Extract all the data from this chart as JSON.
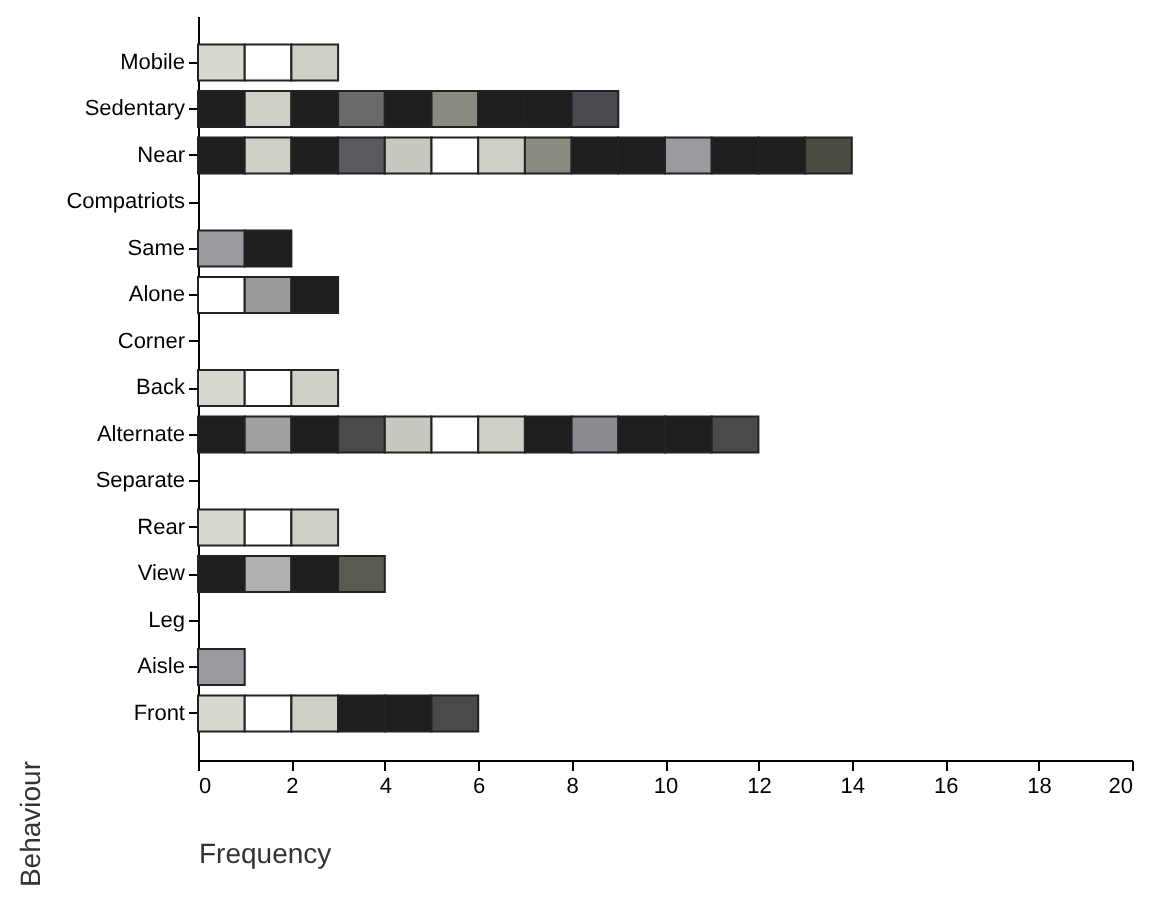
{
  "chart_data": {
    "type": "bar",
    "orientation": "horizontal",
    "stacked": true,
    "xlabel": "Frequency",
    "ylabel": "Behaviour",
    "categories": [
      "Mobile",
      "Sedentary",
      "Near",
      "Compatriots",
      "Same",
      "Alone",
      "Corner",
      "Back",
      "Alternate",
      "Separate",
      "Rear",
      "View",
      "Leg",
      "Aisle",
      "Front"
    ],
    "xlim": [
      0,
      20
    ],
    "xticks": [
      0,
      2,
      4,
      6,
      8,
      10,
      12,
      14,
      16,
      18,
      20
    ],
    "series": [
      {
        "values": [
          1,
          1,
          1,
          null,
          1,
          1,
          null,
          1,
          1,
          null,
          1,
          1,
          null,
          1,
          1
        ],
        "colors": [
          "#d8d8d0",
          "#1e1e1e",
          "#1e1e1e",
          null,
          "#9a9aa0",
          "#ffffff",
          null,
          "#d8d8d0",
          "#1e1e1e",
          null,
          "#d8d8d0",
          "#1e1e1e",
          null,
          "#9a9aa0",
          "#d8d8d0"
        ]
      },
      {
        "values": [
          1,
          1,
          1,
          null,
          1,
          1,
          null,
          1,
          1,
          null,
          1,
          1,
          null,
          null,
          1
        ],
        "colors": [
          "#ffffff",
          "#d0d0c8",
          "#d0d0c8",
          null,
          "#1e1e1e",
          "#9a9a9a",
          null,
          "#ffffff",
          "#a0a0a0",
          null,
          "#ffffff",
          "#b0b0b0",
          null,
          null,
          "#ffffff"
        ]
      },
      {
        "values": [
          1,
          1,
          1,
          null,
          null,
          1,
          null,
          1,
          1,
          null,
          1,
          1,
          null,
          null,
          1
        ],
        "colors": [
          "#d0d0c8",
          "#1e1e1e",
          "#1e1e1e",
          null,
          null,
          "#1e1e1e",
          null,
          "#d0d0c8",
          "#1e1e1e",
          null,
          "#d0d0c8",
          "#1e1e1e",
          null,
          null,
          "#d0d0c8"
        ]
      },
      {
        "values": [
          null,
          1,
          1,
          null,
          null,
          null,
          null,
          null,
          1,
          null,
          null,
          1,
          null,
          null,
          1
        ],
        "colors": [
          null,
          "#6a6a6a",
          "#5a5a60",
          null,
          null,
          null,
          null,
          null,
          "#4a4a4a",
          null,
          null,
          "#5a5a50",
          null,
          null,
          "#1e1e1e"
        ]
      },
      {
        "values": [
          null,
          1,
          1,
          null,
          null,
          null,
          null,
          null,
          1,
          null,
          null,
          null,
          null,
          null,
          1
        ],
        "colors": [
          null,
          "#1e1e1e",
          "#c8c8c0",
          null,
          null,
          null,
          null,
          null,
          "#c8c8c0",
          null,
          null,
          null,
          null,
          null,
          "#1e1e1e"
        ]
      },
      {
        "values": [
          null,
          1,
          1,
          null,
          null,
          null,
          null,
          null,
          1,
          null,
          null,
          null,
          null,
          null,
          1
        ],
        "colors": [
          null,
          "#8a8a80",
          "#ffffff",
          null,
          null,
          null,
          null,
          null,
          "#ffffff",
          null,
          null,
          null,
          null,
          null,
          "#4a4a4a"
        ]
      },
      {
        "values": [
          null,
          1,
          1,
          null,
          null,
          null,
          null,
          null,
          1,
          null,
          null,
          null,
          null,
          null,
          null
        ],
        "colors": [
          null,
          "#1e1e1e",
          "#d0d0c8",
          null,
          null,
          null,
          null,
          null,
          "#d0d0c8",
          null,
          null,
          null,
          null,
          null,
          null
        ]
      },
      {
        "values": [
          null,
          1,
          1,
          null,
          null,
          null,
          null,
          null,
          1,
          null,
          null,
          null,
          null,
          null,
          null
        ],
        "colors": [
          null,
          "#1e1e1e",
          "#8a8a80",
          null,
          null,
          null,
          null,
          null,
          "#1e1e1e",
          null,
          null,
          null,
          null,
          null,
          null
        ]
      },
      {
        "values": [
          null,
          1,
          1,
          null,
          null,
          null,
          null,
          null,
          1,
          null,
          null,
          null,
          null,
          null,
          null
        ],
        "colors": [
          null,
          "#4a4a50",
          "#1e1e1e",
          null,
          null,
          null,
          null,
          null,
          "#8a8a90",
          null,
          null,
          null,
          null,
          null,
          null
        ]
      },
      {
        "values": [
          null,
          null,
          1,
          null,
          null,
          null,
          null,
          null,
          1,
          null,
          null,
          null,
          null,
          null,
          null
        ],
        "colors": [
          null,
          null,
          "#1e1e1e",
          null,
          null,
          null,
          null,
          null,
          "#1e1e1e",
          null,
          null,
          null,
          null,
          null,
          null
        ]
      },
      {
        "values": [
          null,
          null,
          1,
          null,
          null,
          null,
          null,
          null,
          1,
          null,
          null,
          null,
          null,
          null,
          null
        ],
        "colors": [
          null,
          null,
          "#9a9aa0",
          null,
          null,
          null,
          null,
          null,
          "#1e1e1e",
          null,
          null,
          null,
          null,
          null,
          null
        ]
      },
      {
        "values": [
          null,
          null,
          1,
          null,
          null,
          null,
          null,
          null,
          1,
          null,
          null,
          null,
          null,
          null,
          null
        ],
        "colors": [
          null,
          null,
          "#1e1e1e",
          null,
          null,
          null,
          null,
          null,
          "#4a4a4a",
          null,
          null,
          null,
          null,
          null,
          null
        ]
      },
      {
        "values": [
          null,
          null,
          1,
          null,
          null,
          null,
          null,
          null,
          null,
          null,
          null,
          null,
          null,
          null,
          null
        ],
        "colors": [
          null,
          null,
          "#1e1e1e",
          null,
          null,
          null,
          null,
          null,
          null,
          null,
          null,
          null,
          null,
          null,
          null
        ]
      },
      {
        "values": [
          null,
          null,
          1,
          null,
          null,
          null,
          null,
          null,
          null,
          null,
          null,
          null,
          null,
          null,
          null
        ],
        "colors": [
          null,
          null,
          "#4a4a40",
          null,
          null,
          null,
          null,
          null,
          null,
          null,
          null,
          null,
          null,
          null,
          null
        ]
      }
    ]
  }
}
